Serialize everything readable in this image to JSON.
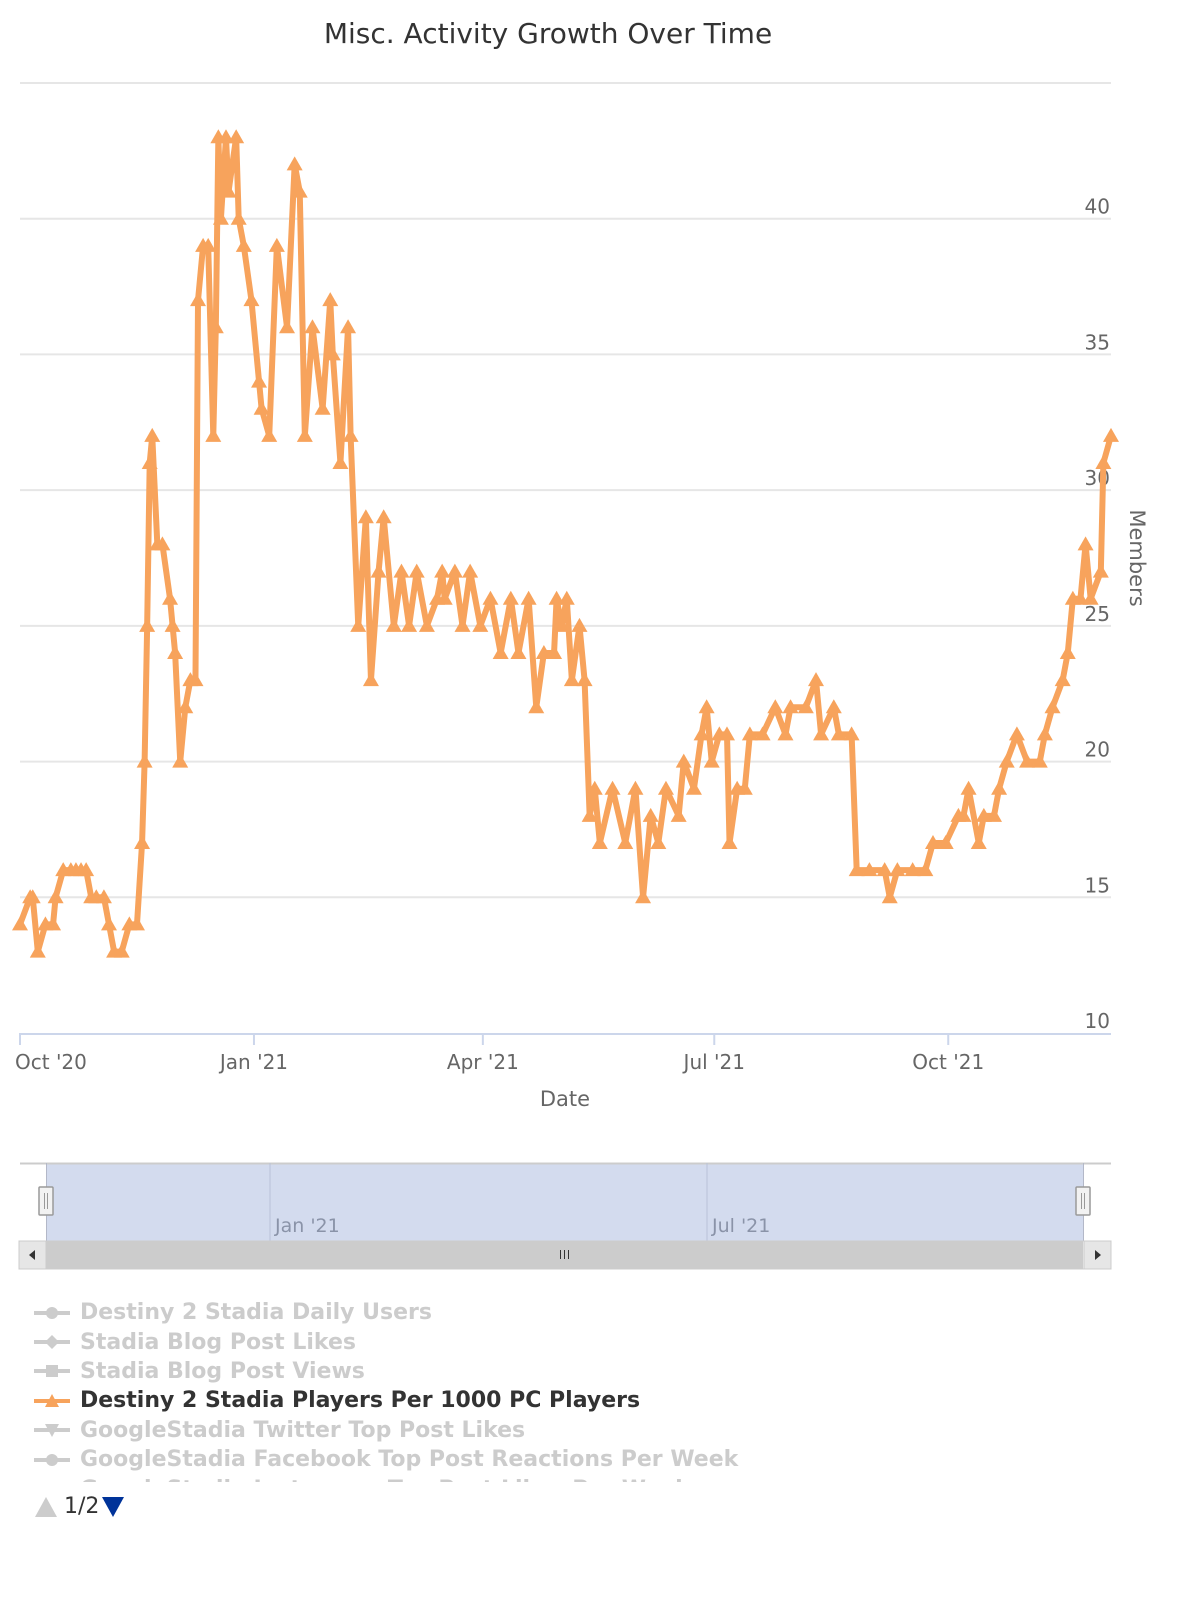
{
  "colors": {
    "series": "#f7a35c",
    "grid": "#e6e6e6",
    "navigator_mask": "#d3dbee",
    "scrollbar": "#cccccc",
    "legend_inactive": "#cccccc",
    "legend_active": "#333333",
    "pager_active": "#003399"
  },
  "chart_data": {
    "type": "line",
    "title": "Misc. Activity Growth Over Time",
    "xlabel": "Date",
    "ylabel": "Members",
    "xlim": [
      "2020-10-01",
      "2021-12-04"
    ],
    "ylim": [
      10,
      45
    ],
    "yticks": [
      10,
      15,
      20,
      25,
      30,
      35,
      40
    ],
    "xticks": [
      {
        "date": "2020-10-01",
        "label": "Oct '20"
      },
      {
        "date": "2021-01-01",
        "label": "Jan '21"
      },
      {
        "date": "2021-04-01",
        "label": "Apr '21"
      },
      {
        "date": "2021-07-01",
        "label": "Jul '21"
      },
      {
        "date": "2021-10-01",
        "label": "Oct '21"
      }
    ],
    "grid": true,
    "y_axis_side": "right",
    "legend_placement": "bottom-left",
    "series": [
      {
        "name": "Destiny 2 Stadia Players Per 1000 PC Players",
        "marker": "triangle",
        "points": [
          [
            "2020-10-01",
            14
          ],
          [
            "2020-10-05",
            15
          ],
          [
            "2020-10-06",
            15
          ],
          [
            "2020-10-08",
            13
          ],
          [
            "2020-10-11",
            14
          ],
          [
            "2020-10-14",
            14
          ],
          [
            "2020-10-15",
            15
          ],
          [
            "2020-10-18",
            16
          ],
          [
            "2020-10-21",
            16
          ],
          [
            "2020-10-23",
            16
          ],
          [
            "2020-10-25",
            16
          ],
          [
            "2020-10-27",
            16
          ],
          [
            "2020-10-29",
            15
          ],
          [
            "2020-10-31",
            15
          ],
          [
            "2020-11-03",
            15
          ],
          [
            "2020-11-05",
            14
          ],
          [
            "2020-11-07",
            13
          ],
          [
            "2020-11-10",
            13
          ],
          [
            "2020-11-13",
            14
          ],
          [
            "2020-11-16",
            14
          ],
          [
            "2020-11-18",
            17
          ],
          [
            "2020-11-19",
            20
          ],
          [
            "2020-11-20",
            25
          ],
          [
            "2020-11-21",
            31
          ],
          [
            "2020-11-22",
            32
          ],
          [
            "2020-11-24",
            28
          ],
          [
            "2020-11-26",
            28
          ],
          [
            "2020-11-29",
            26
          ],
          [
            "2020-11-30",
            25
          ],
          [
            "2020-12-01",
            24
          ],
          [
            "2020-12-03",
            20
          ],
          [
            "2020-12-05",
            22
          ],
          [
            "2020-12-07",
            23
          ],
          [
            "2020-12-09",
            23
          ],
          [
            "2020-12-10",
            37
          ],
          [
            "2020-12-12",
            39
          ],
          [
            "2020-12-14",
            39
          ],
          [
            "2020-12-16",
            32
          ],
          [
            "2020-12-17",
            36
          ],
          [
            "2020-12-18",
            43
          ],
          [
            "2020-12-19",
            40
          ],
          [
            "2020-12-21",
            43
          ],
          [
            "2020-12-22",
            41
          ],
          [
            "2020-12-25",
            43
          ],
          [
            "2020-12-26",
            40
          ],
          [
            "2020-12-28",
            39
          ],
          [
            "2020-12-31",
            37
          ],
          [
            "2021-01-03",
            34
          ],
          [
            "2021-01-04",
            33
          ],
          [
            "2021-01-07",
            32
          ],
          [
            "2021-01-10",
            39
          ],
          [
            "2021-01-14",
            36
          ],
          [
            "2021-01-17",
            42
          ],
          [
            "2021-01-19",
            41
          ],
          [
            "2021-01-21",
            32
          ],
          [
            "2021-01-24",
            36
          ],
          [
            "2021-01-28",
            33
          ],
          [
            "2021-01-31",
            37
          ],
          [
            "2021-02-01",
            35
          ],
          [
            "2021-02-04",
            31
          ],
          [
            "2021-02-07",
            36
          ],
          [
            "2021-02-08",
            32
          ],
          [
            "2021-02-11",
            25
          ],
          [
            "2021-02-14",
            29
          ],
          [
            "2021-02-16",
            23
          ],
          [
            "2021-02-19",
            27
          ],
          [
            "2021-02-21",
            29
          ],
          [
            "2021-02-25",
            25
          ],
          [
            "2021-02-28",
            27
          ],
          [
            "2021-03-03",
            25
          ],
          [
            "2021-03-06",
            27
          ],
          [
            "2021-03-10",
            25
          ],
          [
            "2021-03-14",
            26
          ],
          [
            "2021-03-16",
            27
          ],
          [
            "2021-03-17",
            26
          ],
          [
            "2021-03-21",
            27
          ],
          [
            "2021-03-24",
            25
          ],
          [
            "2021-03-27",
            27
          ],
          [
            "2021-03-31",
            25
          ],
          [
            "2021-04-04",
            26
          ],
          [
            "2021-04-08",
            24
          ],
          [
            "2021-04-12",
            26
          ],
          [
            "2021-04-15",
            24
          ],
          [
            "2021-04-19",
            26
          ],
          [
            "2021-04-22",
            22
          ],
          [
            "2021-04-25",
            24
          ],
          [
            "2021-04-29",
            24
          ],
          [
            "2021-04-30",
            26
          ],
          [
            "2021-05-02",
            25
          ],
          [
            "2021-05-04",
            26
          ],
          [
            "2021-05-06",
            23
          ],
          [
            "2021-05-09",
            25
          ],
          [
            "2021-05-11",
            23
          ],
          [
            "2021-05-13",
            18
          ],
          [
            "2021-05-15",
            19
          ],
          [
            "2021-05-17",
            17
          ],
          [
            "2021-05-22",
            19
          ],
          [
            "2021-05-27",
            17
          ],
          [
            "2021-05-31",
            19
          ],
          [
            "2021-06-03",
            15
          ],
          [
            "2021-06-06",
            18
          ],
          [
            "2021-06-09",
            17
          ],
          [
            "2021-06-12",
            19
          ],
          [
            "2021-06-17",
            18
          ],
          [
            "2021-06-19",
            20
          ],
          [
            "2021-06-23",
            19
          ],
          [
            "2021-06-26",
            21
          ],
          [
            "2021-06-28",
            22
          ],
          [
            "2021-06-30",
            20
          ],
          [
            "2021-07-03",
            21
          ],
          [
            "2021-07-06",
            21
          ],
          [
            "2021-07-07",
            17
          ],
          [
            "2021-07-10",
            19
          ],
          [
            "2021-07-13",
            19
          ],
          [
            "2021-07-15",
            21
          ],
          [
            "2021-07-20",
            21
          ],
          [
            "2021-07-25",
            22
          ],
          [
            "2021-07-29",
            21
          ],
          [
            "2021-07-31",
            22
          ],
          [
            "2021-08-06",
            22
          ],
          [
            "2021-08-10",
            23
          ],
          [
            "2021-08-12",
            21
          ],
          [
            "2021-08-17",
            22
          ],
          [
            "2021-08-19",
            21
          ],
          [
            "2021-08-24",
            21
          ],
          [
            "2021-08-26",
            16
          ],
          [
            "2021-08-31",
            16
          ],
          [
            "2021-09-06",
            16
          ],
          [
            "2021-09-08",
            15
          ],
          [
            "2021-09-11",
            16
          ],
          [
            "2021-09-17",
            16
          ],
          [
            "2021-09-22",
            16
          ],
          [
            "2021-09-25",
            17
          ],
          [
            "2021-09-30",
            17
          ],
          [
            "2021-10-05",
            18
          ],
          [
            "2021-10-07",
            18
          ],
          [
            "2021-10-09",
            19
          ],
          [
            "2021-10-13",
            17
          ],
          [
            "2021-10-15",
            18
          ],
          [
            "2021-10-19",
            18
          ],
          [
            "2021-10-21",
            19
          ],
          [
            "2021-10-24",
            20
          ],
          [
            "2021-10-28",
            21
          ],
          [
            "2021-11-01",
            20
          ],
          [
            "2021-11-06",
            20
          ],
          [
            "2021-11-08",
            21
          ],
          [
            "2021-11-11",
            22
          ],
          [
            "2021-11-15",
            23
          ],
          [
            "2021-11-17",
            24
          ],
          [
            "2021-11-19",
            26
          ],
          [
            "2021-11-22",
            26
          ],
          [
            "2021-11-24",
            28
          ],
          [
            "2021-11-26",
            26
          ],
          [
            "2021-11-30",
            27
          ],
          [
            "2021-12-01",
            31
          ],
          [
            "2021-12-04",
            32
          ]
        ]
      }
    ]
  },
  "navigator": {
    "labels": [
      {
        "date": "2021-01-01",
        "label": "Jan '21"
      },
      {
        "date": "2021-07-01",
        "label": "Jul '21"
      }
    ]
  },
  "legend": {
    "items": [
      {
        "label": "Destiny 2 Stadia Daily Users",
        "symbol": "circle",
        "active": false
      },
      {
        "label": "Stadia Blog Post Likes",
        "symbol": "diamond",
        "active": false
      },
      {
        "label": "Stadia Blog Post Views",
        "symbol": "square",
        "active": false
      },
      {
        "label": "Destiny 2 Stadia Players Per 1000 PC Players",
        "symbol": "triangle",
        "active": true
      },
      {
        "label": "GoogleStadia Twitter Top Post Likes",
        "symbol": "triangle-down",
        "active": false
      },
      {
        "label": "GoogleStadia Facebook Top Post Reactions Per Week",
        "symbol": "circle",
        "active": false
      },
      {
        "label": "GoogleStadia Instagram Top Post Likes Per Week",
        "symbol": "diamond",
        "active": false
      }
    ],
    "pager": "1/2"
  }
}
